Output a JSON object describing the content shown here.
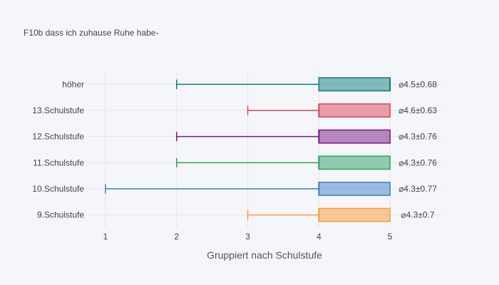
{
  "chart_data": {
    "type": "box",
    "orientation": "horizontal",
    "title": "F10b dass ich zuhause Ruhe habe-",
    "xlabel": "Gruppiert nach Schulstufe",
    "ylabel": "",
    "xlim": [
      0.75,
      5.72
    ],
    "xticks": [
      "1",
      "2",
      "3",
      "4",
      "5"
    ],
    "xtick_values": [
      1,
      2,
      3,
      4,
      5
    ],
    "grid": true,
    "legend": "none",
    "categories": [
      "9.Schulstufe",
      "10.Schulstufe",
      "11.Schulstufe",
      "12.Schulstufe",
      "13.Schulstufe",
      "höher"
    ],
    "series": [
      {
        "category": "9.Schulstufe",
        "min": 3,
        "q1": 4,
        "median": 4,
        "q3": 5,
        "max": 5,
        "annotation": "⌀4.3±0.7",
        "color": "#ff9933"
      },
      {
        "category": "10.Schulstufe",
        "min": 1,
        "q1": 4,
        "median": 4,
        "q3": 5,
        "max": 5,
        "annotation": "⌀4.3±0.77",
        "color": "#3d7fc1"
      },
      {
        "category": "11.Schulstufe",
        "min": 2,
        "q1": 4,
        "median": 4,
        "q3": 5,
        "max": 5,
        "annotation": "⌀4.3±0.76",
        "color": "#2ca25f"
      },
      {
        "category": "12.Schulstufe",
        "min": 2,
        "q1": 4,
        "median": 4,
        "q3": 5,
        "max": 5,
        "annotation": "⌀4.3±0.76",
        "color": "#7a1a86"
      },
      {
        "category": "13.Schulstufe",
        "min": 3,
        "q1": 4,
        "median": 4,
        "q3": 5,
        "max": 5,
        "annotation": "⌀4.6±0.63",
        "color": "#dc4455"
      },
      {
        "category": "höher",
        "min": 2,
        "q1": 4,
        "median": 5,
        "q3": 5,
        "max": 5,
        "annotation": "⌀4.5±0.68",
        "color": "#0f7b7b"
      }
    ]
  }
}
